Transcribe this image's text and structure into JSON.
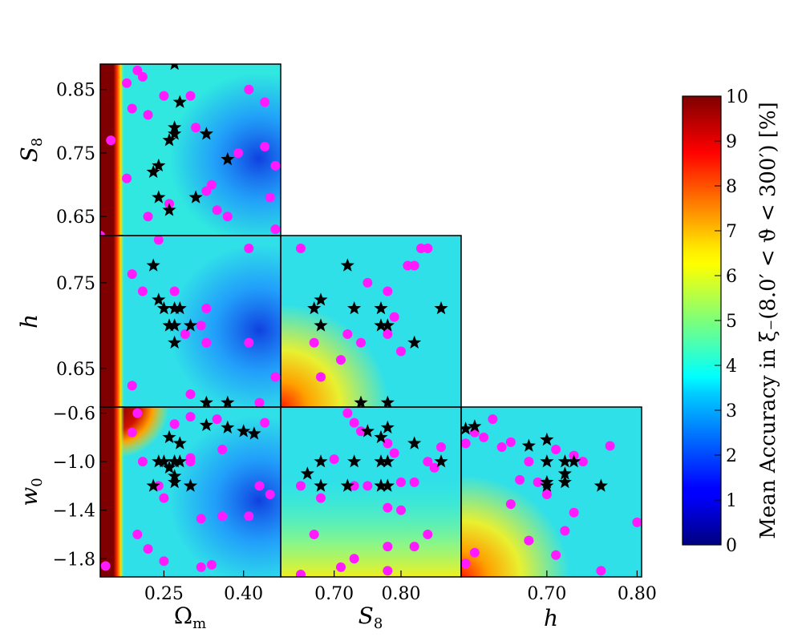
{
  "chart_data": {
    "type": "heatmap",
    "colorbar": {
      "label": "Mean Accuracy in ξ₋(8.0′ < ϑ < 300′) [%]",
      "range": [
        0,
        10
      ],
      "ticks": [
        "0",
        "1",
        "2",
        "3",
        "4",
        "5",
        "6",
        "7",
        "8",
        "9",
        "10"
      ],
      "colormap": "jet"
    },
    "marker_legend": {
      "star_color": "#000000",
      "dot_color": "#ff1aff"
    },
    "params": {
      "Om": {
        "label": "Ω",
        "sub": "m",
        "range": [
          0.13,
          0.47
        ],
        "ticks": [
          0.25,
          0.4
        ],
        "tick_labels": [
          "0.25",
          "0.40"
        ]
      },
      "S8": {
        "label": "S",
        "sub": "8",
        "range": [
          0.62,
          0.89
        ],
        "ticks": [
          0.65,
          0.75,
          0.85
        ],
        "tick_labels": [
          "0.65",
          "0.75",
          "0.85"
        ],
        "xticks": [
          0.7,
          0.8
        ],
        "xtick_labels": [
          "0.70",
          "0.80"
        ]
      },
      "h": {
        "label": "h",
        "sub": "",
        "range": [
          0.605,
          0.805
        ],
        "ticks": [
          0.65,
          0.75
        ],
        "tick_labels": [
          "0.65",
          "0.75"
        ],
        "xticks": [
          0.7,
          0.8
        ],
        "xtick_labels": [
          "0.70",
          "0.80"
        ]
      },
      "w0": {
        "label": "w",
        "sub": "0",
        "range": [
          -1.95,
          -0.55
        ],
        "ticks": [
          -0.6,
          -1.0,
          -1.4,
          -1.8
        ],
        "tick_labels": [
          "−0.6",
          "−1.0",
          "−1.4",
          "−1.8"
        ]
      }
    },
    "panels": [
      {
        "id": "S8-vs-Om",
        "x": "Om",
        "y": "S8",
        "stars": [
          [
            0.27,
            0.89
          ],
          [
            0.28,
            0.83
          ],
          [
            0.27,
            0.79
          ],
          [
            0.27,
            0.78
          ],
          [
            0.26,
            0.77
          ],
          [
            0.33,
            0.78
          ],
          [
            0.37,
            0.74
          ],
          [
            0.23,
            0.72
          ],
          [
            0.24,
            0.73
          ],
          [
            0.24,
            0.68
          ],
          [
            0.26,
            0.66
          ],
          [
            0.31,
            0.68
          ]
        ],
        "dots": [
          [
            0.2,
            0.88
          ],
          [
            0.21,
            0.87
          ],
          [
            0.18,
            0.86
          ],
          [
            0.25,
            0.84
          ],
          [
            0.19,
            0.82
          ],
          [
            0.22,
            0.81
          ],
          [
            0.3,
            0.84
          ],
          [
            0.36,
            0.9
          ],
          [
            0.41,
            0.85
          ],
          [
            0.44,
            0.83
          ],
          [
            0.49,
            0.81
          ],
          [
            0.15,
            0.77
          ],
          [
            0.31,
            0.79
          ],
          [
            0.39,
            0.75
          ],
          [
            0.44,
            0.76
          ],
          [
            0.46,
            0.73
          ],
          [
            0.18,
            0.71
          ],
          [
            0.34,
            0.7
          ],
          [
            0.33,
            0.69
          ],
          [
            0.26,
            0.67
          ],
          [
            0.22,
            0.65
          ],
          [
            0.35,
            0.66
          ],
          [
            0.37,
            0.65
          ],
          [
            0.45,
            0.68
          ],
          [
            0.13,
            0.62
          ],
          [
            0.46,
            0.63
          ]
        ]
      },
      {
        "id": "h-vs-Om",
        "x": "Om",
        "y": "h",
        "stars": [
          [
            0.23,
            0.77
          ],
          [
            0.24,
            0.73
          ],
          [
            0.25,
            0.72
          ],
          [
            0.27,
            0.72
          ],
          [
            0.28,
            0.72
          ],
          [
            0.26,
            0.7
          ],
          [
            0.27,
            0.7
          ],
          [
            0.3,
            0.7
          ],
          [
            0.27,
            0.68
          ],
          [
            0.33,
            0.61
          ],
          [
            0.37,
            0.61
          ]
        ],
        "dots": [
          [
            0.17,
            0.81
          ],
          [
            0.24,
            0.8
          ],
          [
            0.19,
            0.76
          ],
          [
            0.21,
            0.74
          ],
          [
            0.27,
            0.74
          ],
          [
            0.33,
            0.72
          ],
          [
            0.32,
            0.7
          ],
          [
            0.29,
            0.69
          ],
          [
            0.33,
            0.68
          ],
          [
            0.41,
            0.79
          ],
          [
            0.41,
            0.68
          ],
          [
            0.46,
            0.64
          ],
          [
            0.19,
            0.63
          ],
          [
            0.3,
            0.62
          ],
          [
            0.43,
            0.61
          ]
        ]
      },
      {
        "id": "h-vs-S8",
        "x": "S8",
        "y": "h",
        "stars": [
          [
            0.72,
            0.77
          ],
          [
            0.68,
            0.73
          ],
          [
            0.67,
            0.72
          ],
          [
            0.73,
            0.72
          ],
          [
            0.77,
            0.72
          ],
          [
            0.68,
            0.7
          ],
          [
            0.77,
            0.7
          ],
          [
            0.78,
            0.7
          ],
          [
            0.82,
            0.68
          ],
          [
            0.86,
            0.72
          ],
          [
            0.74,
            0.61
          ],
          [
            0.78,
            0.61
          ]
        ],
        "dots": [
          [
            0.7,
            0.81
          ],
          [
            0.8,
            0.81
          ],
          [
            0.81,
            0.77
          ],
          [
            0.82,
            0.77
          ],
          [
            0.65,
            0.79
          ],
          [
            0.83,
            0.79
          ],
          [
            0.84,
            0.79
          ],
          [
            0.75,
            0.75
          ],
          [
            0.78,
            0.74
          ],
          [
            0.79,
            0.71
          ],
          [
            0.78,
            0.69
          ],
          [
            0.72,
            0.69
          ],
          [
            0.74,
            0.68
          ],
          [
            0.67,
            0.68
          ],
          [
            0.71,
            0.66
          ],
          [
            0.8,
            0.67
          ],
          [
            0.68,
            0.64
          ]
        ]
      },
      {
        "id": "w0-vs-Om",
        "x": "Om",
        "y": "w0",
        "stars": [
          [
            0.33,
            -0.7
          ],
          [
            0.37,
            -0.72
          ],
          [
            0.4,
            -0.75
          ],
          [
            0.42,
            -0.77
          ],
          [
            0.26,
            -0.8
          ],
          [
            0.28,
            -0.85
          ],
          [
            0.24,
            -1.0
          ],
          [
            0.25,
            -1.0
          ],
          [
            0.27,
            -1.0
          ],
          [
            0.28,
            -1.0
          ],
          [
            0.26,
            -1.05
          ],
          [
            0.27,
            -1.12
          ],
          [
            0.27,
            -1.17
          ],
          [
            0.23,
            -1.2
          ],
          [
            0.3,
            -1.2
          ],
          [
            0.27,
            -1.0
          ]
        ],
        "dots": [
          [
            0.2,
            -0.6
          ],
          [
            0.3,
            -0.63
          ],
          [
            0.19,
            -0.76
          ],
          [
            0.27,
            -0.69
          ],
          [
            0.35,
            -0.65
          ],
          [
            0.44,
            -0.68
          ],
          [
            0.36,
            -0.9
          ],
          [
            0.3,
            -0.97
          ],
          [
            0.21,
            -1.0
          ],
          [
            0.24,
            -1.2
          ],
          [
            0.3,
            -1.0
          ],
          [
            0.43,
            -1.2
          ],
          [
            0.45,
            -1.27
          ],
          [
            0.25,
            -1.3
          ],
          [
            0.32,
            -1.47
          ],
          [
            0.36,
            -1.45
          ],
          [
            0.41,
            -1.45
          ],
          [
            0.2,
            -1.6
          ],
          [
            0.22,
            -1.72
          ],
          [
            0.25,
            -1.82
          ],
          [
            0.32,
            -1.87
          ],
          [
            0.34,
            -1.85
          ],
          [
            0.14,
            -1.86
          ]
        ]
      },
      {
        "id": "w0-vs-S8",
        "x": "S8",
        "y": "w0",
        "stars": [
          [
            0.75,
            -0.75
          ],
          [
            0.78,
            -0.72
          ],
          [
            0.77,
            -0.8
          ],
          [
            0.82,
            -0.85
          ],
          [
            0.68,
            -1.0
          ],
          [
            0.73,
            -1.0
          ],
          [
            0.77,
            -1.0
          ],
          [
            0.78,
            -1.0
          ],
          [
            0.66,
            -1.1
          ],
          [
            0.68,
            -1.2
          ],
          [
            0.72,
            -1.2
          ],
          [
            0.77,
            -1.2
          ],
          [
            0.78,
            -1.2
          ],
          [
            0.86,
            -1.0
          ]
        ],
        "dots": [
          [
            0.72,
            -0.6
          ],
          [
            0.73,
            -0.68
          ],
          [
            0.74,
            -0.75
          ],
          [
            0.78,
            -0.85
          ],
          [
            0.86,
            -0.88
          ],
          [
            0.7,
            -0.98
          ],
          [
            0.79,
            -0.93
          ],
          [
            0.84,
            -1.0
          ],
          [
            0.8,
            -1.17
          ],
          [
            0.65,
            -1.2
          ],
          [
            0.73,
            -1.2
          ],
          [
            0.75,
            -1.2
          ],
          [
            0.82,
            -1.17
          ],
          [
            0.85,
            -1.05
          ],
          [
            0.68,
            -1.3
          ],
          [
            0.78,
            -1.38
          ],
          [
            0.8,
            -1.4
          ],
          [
            0.67,
            -1.6
          ],
          [
            0.78,
            -1.7
          ],
          [
            0.82,
            -1.7
          ],
          [
            0.84,
            -1.6
          ],
          [
            0.73,
            -1.8
          ],
          [
            0.71,
            -1.87
          ],
          [
            0.65,
            -1.93
          ],
          [
            0.78,
            -1.9
          ]
        ]
      },
      {
        "id": "w0-vs-h",
        "x": "h",
        "y": "w0",
        "stars": [
          [
            0.61,
            -0.73
          ],
          [
            0.62,
            -0.71
          ],
          [
            0.68,
            -0.87
          ],
          [
            0.7,
            -0.82
          ],
          [
            0.7,
            -1.0
          ],
          [
            0.72,
            -1.0
          ],
          [
            0.73,
            -1.0
          ],
          [
            0.72,
            -1.1
          ],
          [
            0.7,
            -1.17
          ],
          [
            0.7,
            -1.2
          ],
          [
            0.72,
            -1.17
          ],
          [
            0.76,
            -1.2
          ]
        ],
        "dots": [
          [
            0.64,
            -0.65
          ],
          [
            0.62,
            -0.76
          ],
          [
            0.63,
            -0.8
          ],
          [
            0.66,
            -0.84
          ],
          [
            0.65,
            -0.88
          ],
          [
            0.61,
            -0.85
          ],
          [
            0.71,
            -0.9
          ],
          [
            0.68,
            -1.0
          ],
          [
            0.77,
            -0.87
          ],
          [
            0.73,
            -0.95
          ],
          [
            0.74,
            -1.0
          ],
          [
            0.67,
            -1.15
          ],
          [
            0.69,
            -1.17
          ],
          [
            0.7,
            -1.27
          ],
          [
            0.66,
            -1.35
          ],
          [
            0.73,
            -1.42
          ],
          [
            0.72,
            -1.57
          ],
          [
            0.68,
            -1.65
          ],
          [
            0.8,
            -1.5
          ],
          [
            0.71,
            -1.77
          ],
          [
            0.62,
            -1.75
          ],
          [
            0.61,
            -1.84
          ],
          [
            0.76,
            -1.9
          ]
        ]
      }
    ]
  }
}
